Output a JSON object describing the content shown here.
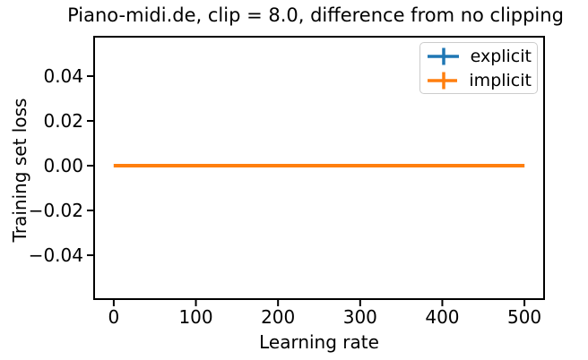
{
  "chart_data": {
    "type": "line",
    "title": "Piano-midi.de, clip = 8.0, difference from no clipping",
    "xlabel": "Learning rate",
    "ylabel": "Training set loss",
    "xlim": [
      -25,
      525
    ],
    "ylim": [
      -0.06,
      0.058
    ],
    "grid": false,
    "legend_position": "upper right",
    "background_color": "#ffffff",
    "axis_color": "#000000",
    "legend_border_color": "#cccccc",
    "xticks": {
      "values": [
        0,
        100,
        200,
        300,
        400,
        500
      ],
      "labels": [
        "0",
        "100",
        "200",
        "300",
        "400",
        "500"
      ]
    },
    "yticks": {
      "values": [
        0.04,
        0.02,
        0.0,
        -0.02,
        -0.04
      ],
      "labels": [
        "0.04",
        "0.02",
        "0.00",
        "−0.02",
        "−0.04"
      ]
    },
    "x": [
      0,
      100,
      200,
      300,
      400,
      500
    ],
    "series": [
      {
        "name": "explicit",
        "color": "#1f77b4",
        "marker": "errorbar-cross",
        "values": [
          0.0,
          0.0,
          0.0,
          0.0,
          0.0,
          0.0
        ]
      },
      {
        "name": "implicit",
        "color": "#ff7f0e",
        "marker": "errorbar-cross",
        "values": [
          0.0,
          0.0,
          0.0,
          0.0,
          0.0,
          0.0
        ]
      }
    ]
  }
}
